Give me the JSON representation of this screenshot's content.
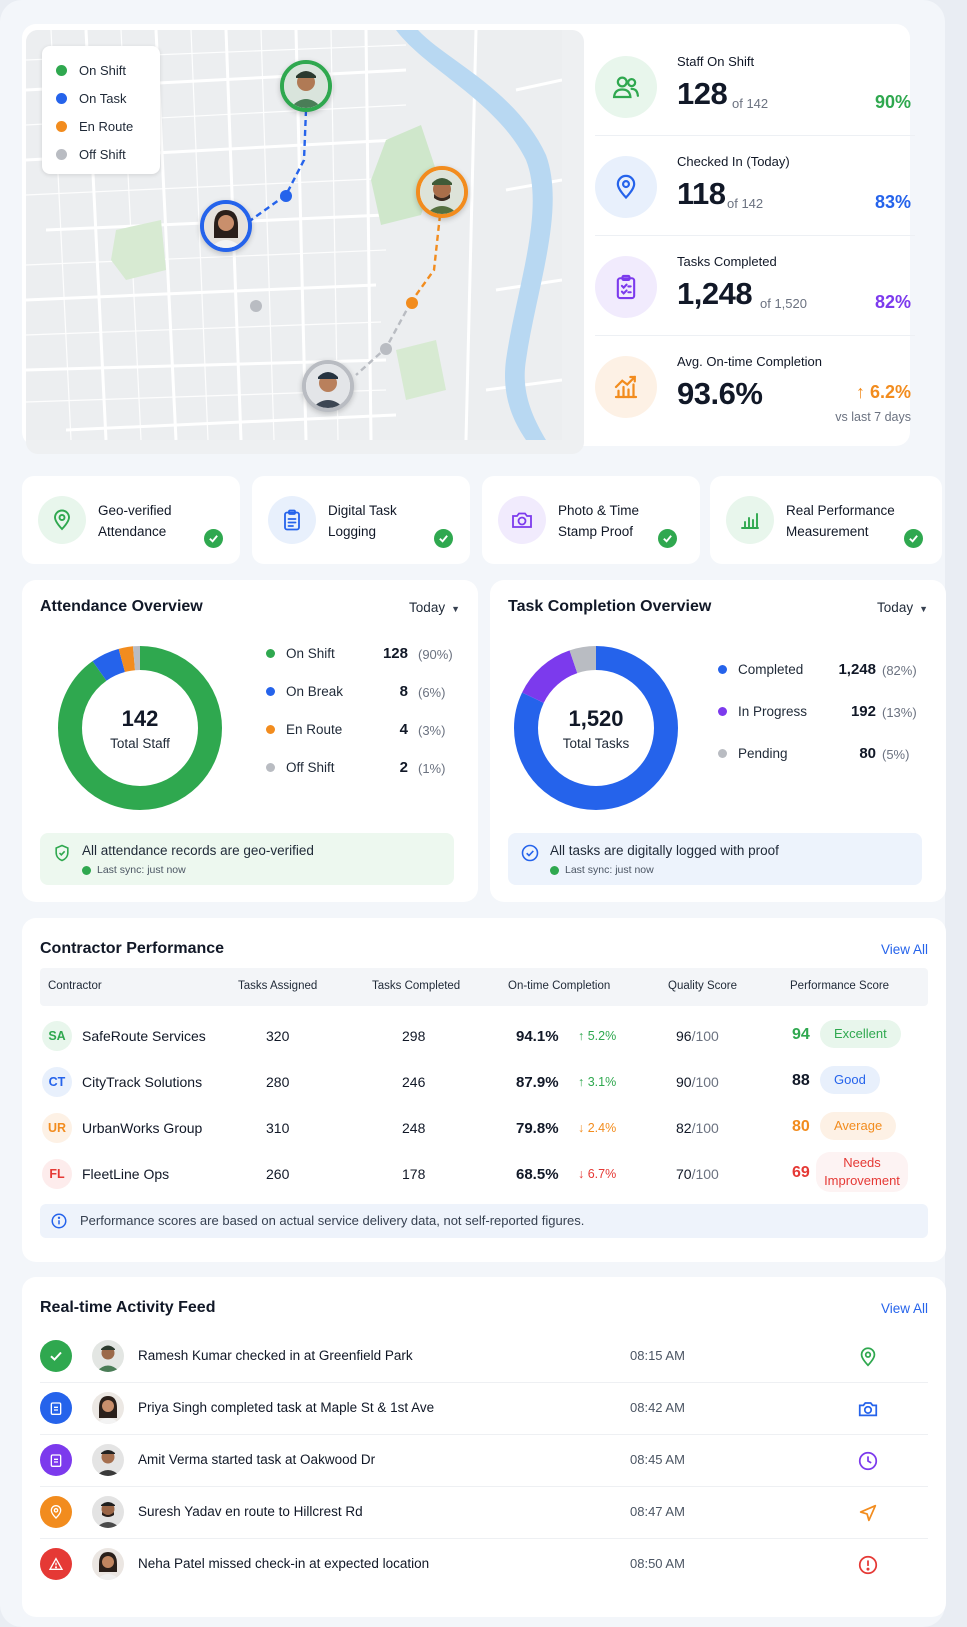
{
  "colors": {
    "green": "#2fa84f",
    "blue": "#2563eb",
    "orange": "#f28c1e",
    "purple": "#7c3aed",
    "gray": "#b9bcc2",
    "red": "#e53935"
  },
  "map": {
    "legend": [
      {
        "label": "On Shift",
        "color": "#2fa84f"
      },
      {
        "label": "On Task",
        "color": "#2563eb"
      },
      {
        "label": "En Route",
        "color": "#f28c1e"
      },
      {
        "label": "Off Shift",
        "color": "#b9bcc2"
      }
    ]
  },
  "stats": [
    {
      "icon": "users-icon",
      "label": "Staff On Shift",
      "value": "128",
      "of": "of 142",
      "pct": "90%",
      "color": "#2fa84f"
    },
    {
      "icon": "location-pin-icon",
      "label": "Checked In (Today)",
      "value": "118",
      "of": "of 142",
      "pct": "83%",
      "color": "#2563eb"
    },
    {
      "icon": "clipboard-check-icon",
      "label": "Tasks Completed",
      "value": "1,248",
      "of": "of 1,520",
      "pct": "82%",
      "color": "#7c3aed"
    },
    {
      "icon": "chart-trend-icon",
      "label": "Avg. On-time Completion",
      "value": "93.6%",
      "pct": "↑ 6.2%",
      "sub": "vs last 7 days",
      "color": "#f28c1e"
    }
  ],
  "features": [
    {
      "icon": "location-pin-icon",
      "label": "Geo-verified Attendance"
    },
    {
      "icon": "clipboard-icon",
      "label": "Digital Task Logging"
    },
    {
      "icon": "camera-icon",
      "label": "Photo & Time Stamp Proof"
    },
    {
      "icon": "bar-chart-icon",
      "label": "Real Performance Measurement"
    }
  ],
  "attendance": {
    "title": "Attendance Overview",
    "period": "Today",
    "center_value": "142",
    "center_label": "Total Staff",
    "legend": [
      {
        "label": "On Shift",
        "value": "128",
        "pct": "(90%)",
        "color": "#2fa84f"
      },
      {
        "label": "On Break",
        "value": "8",
        "pct": "(6%)",
        "color": "#2563eb"
      },
      {
        "label": "En Route",
        "value": "4",
        "pct": "(3%)",
        "color": "#f28c1e"
      },
      {
        "label": "Off Shift",
        "value": "2",
        "pct": "(1%)",
        "color": "#b9bcc2"
      }
    ],
    "note": "All attendance records are geo-verified",
    "sync": "Last sync: just now"
  },
  "tasks": {
    "title": "Task Completion Overview",
    "period": "Today",
    "center_value": "1,520",
    "center_label": "Total Tasks",
    "legend": [
      {
        "label": "Completed",
        "value": "1,248",
        "pct": "(82%)",
        "color": "#2563eb"
      },
      {
        "label": "In Progress",
        "value": "192",
        "pct": "(13%)",
        "color": "#7c3aed"
      },
      {
        "label": "Pending",
        "value": "80",
        "pct": "(5%)",
        "color": "#b9bcc2"
      }
    ],
    "note": "All tasks are digitally logged with proof",
    "sync": "Last sync: just now"
  },
  "performance": {
    "title": "Contractor Performance",
    "view_all": "View All",
    "columns": [
      "Contractor",
      "Tasks Assigned",
      "Tasks Completed",
      "On-time Completion",
      "Quality Score",
      "Performance Score"
    ],
    "rows": [
      {
        "initials": "SA",
        "name": "SafeRoute Services",
        "assigned": "320",
        "completed": "298",
        "ontime": "94.1%",
        "trend": "↑ 5.2%",
        "trend_dir": "up",
        "quality": "96",
        "quality_max": "/100",
        "score": "94",
        "rating": "Excellent",
        "tone": "green"
      },
      {
        "initials": "CT",
        "name": "CityTrack Solutions",
        "assigned": "280",
        "completed": "246",
        "ontime": "87.9%",
        "trend": "↑ 3.1%",
        "trend_dir": "up",
        "quality": "90",
        "quality_max": "/100",
        "score": "88",
        "rating": "Good",
        "tone": "blue"
      },
      {
        "initials": "UR",
        "name": "UrbanWorks Group",
        "assigned": "310",
        "completed": "248",
        "ontime": "79.8%",
        "trend": "↓ 2.4%",
        "trend_dir": "down-orange",
        "quality": "82",
        "quality_max": "/100",
        "score": "80",
        "rating": "Average",
        "tone": "orange"
      },
      {
        "initials": "FL",
        "name": "FleetLine Ops",
        "assigned": "260",
        "completed": "178",
        "ontime": "68.5%",
        "trend": "↓ 6.7%",
        "trend_dir": "down-red",
        "quality": "70",
        "quality_max": "/100",
        "score": "69",
        "rating": "Needs Improvement",
        "tone": "red"
      }
    ],
    "info": "Performance scores are based on actual service delivery data, not self-reported figures."
  },
  "feed": {
    "title": "Real-time Activity Feed",
    "view_all": "View All",
    "items": [
      {
        "status_icon": "check-icon",
        "tone": "green",
        "text": "Ramesh Kumar checked in at Greenfield Park",
        "time": "08:15 AM",
        "action_icon": "location-pin-icon"
      },
      {
        "status_icon": "clipboard-icon",
        "tone": "blue",
        "text": "Priya Singh completed task at Maple St & 1st Ave",
        "time": "08:42 AM",
        "action_icon": "camera-icon"
      },
      {
        "status_icon": "clipboard-icon",
        "tone": "purple",
        "text": "Amit Verma started task at Oakwood Dr",
        "time": "08:45 AM",
        "action_icon": "clock-icon"
      },
      {
        "status_icon": "location-pin-icon",
        "tone": "orange",
        "text": "Suresh Yadav en route to Hillcrest Rd",
        "time": "08:47 AM",
        "action_icon": "navigation-icon"
      },
      {
        "status_icon": "warning-icon",
        "tone": "red",
        "text": "Neha Patel missed check-in at expected location",
        "time": "08:50 AM",
        "action_icon": "alert-circle-icon"
      }
    ]
  }
}
